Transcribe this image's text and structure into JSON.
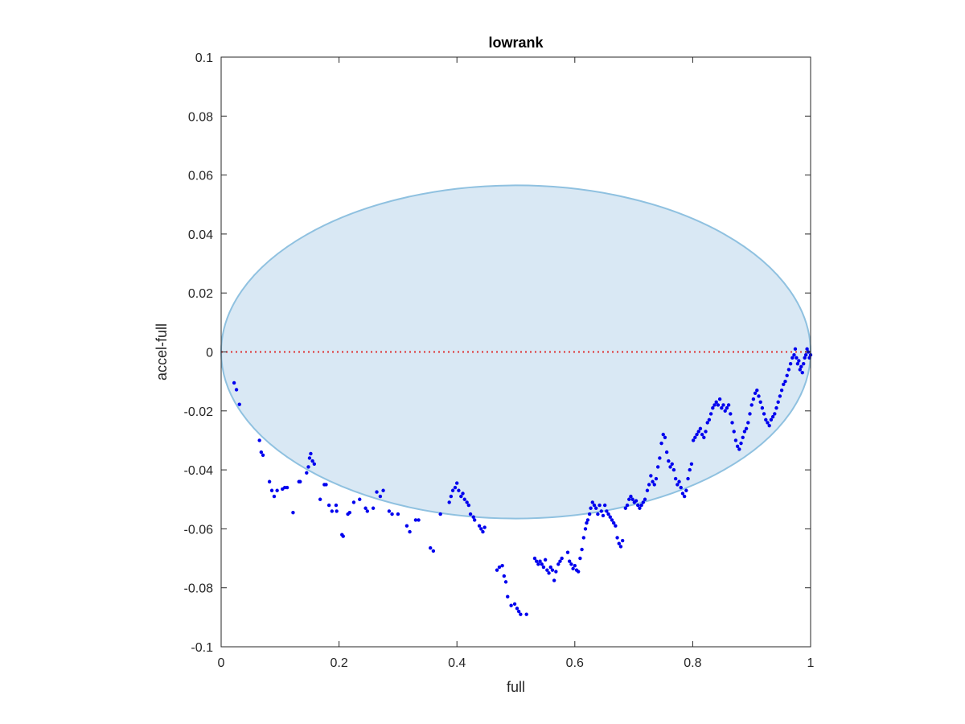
{
  "chart_data": {
    "type": "scatter",
    "title": "lowrank",
    "xlabel": "full",
    "ylabel": "accel-full",
    "xlim": [
      0,
      1
    ],
    "ylim": [
      -0.1,
      0.1
    ],
    "xticks": [
      "0",
      "0.2",
      "0.4",
      "0.6",
      "0.8",
      "1"
    ],
    "xtick_values": [
      0,
      0.2,
      0.4,
      0.6,
      0.8,
      1
    ],
    "yticks": [
      "0.1",
      "0.08",
      "0.06",
      "0.04",
      "0.02",
      "0",
      "-0.02",
      "-0.04",
      "-0.06",
      "-0.08",
      "-0.1"
    ],
    "ytick_values": [
      0.1,
      0.08,
      0.06,
      0.04,
      0.02,
      0,
      -0.02,
      -0.04,
      -0.06,
      -0.08,
      -0.1
    ],
    "grid": false,
    "reference_line": {
      "y": 0,
      "x_range": [
        0,
        1
      ],
      "color": "#e03030",
      "style": "dotted"
    },
    "ellipse": {
      "center": [
        0.5,
        0.0
      ],
      "x_radius": 0.5,
      "y_radius": 0.0565,
      "fill": "#d9e8f4",
      "stroke": "#8fc1e0"
    },
    "series": [
      {
        "color": "#0000ee",
        "points": [
          [
            0.022,
            -0.0105
          ],
          [
            0.026,
            -0.0128
          ],
          [
            0.031,
            -0.0178
          ],
          [
            0.065,
            -0.03
          ],
          [
            0.068,
            -0.034
          ],
          [
            0.071,
            -0.035
          ],
          [
            0.082,
            -0.044
          ],
          [
            0.086,
            -0.047
          ],
          [
            0.09,
            -0.049
          ],
          [
            0.095,
            -0.047
          ],
          [
            0.104,
            -0.0465
          ],
          [
            0.108,
            -0.046
          ],
          [
            0.112,
            -0.046
          ],
          [
            0.122,
            -0.0545
          ],
          [
            0.132,
            -0.044
          ],
          [
            0.134,
            -0.044
          ],
          [
            0.145,
            -0.041
          ],
          [
            0.148,
            -0.039
          ],
          [
            0.15,
            -0.036
          ],
          [
            0.152,
            -0.0345
          ],
          [
            0.155,
            -0.037
          ],
          [
            0.158,
            -0.038
          ],
          [
            0.168,
            -0.05
          ],
          [
            0.175,
            -0.045
          ],
          [
            0.178,
            -0.045
          ],
          [
            0.183,
            -0.052
          ],
          [
            0.188,
            -0.054
          ],
          [
            0.195,
            -0.052
          ],
          [
            0.196,
            -0.054
          ],
          [
            0.205,
            -0.062
          ],
          [
            0.207,
            -0.0625
          ],
          [
            0.215,
            -0.055
          ],
          [
            0.218,
            -0.0545
          ],
          [
            0.225,
            -0.051
          ],
          [
            0.235,
            -0.05
          ],
          [
            0.245,
            -0.053
          ],
          [
            0.248,
            -0.054
          ],
          [
            0.258,
            -0.053
          ],
          [
            0.264,
            -0.0475
          ],
          [
            0.27,
            -0.049
          ],
          [
            0.275,
            -0.047
          ],
          [
            0.285,
            -0.054
          ],
          [
            0.29,
            -0.055
          ],
          [
            0.3,
            -0.055
          ],
          [
            0.315,
            -0.059
          ],
          [
            0.32,
            -0.061
          ],
          [
            0.33,
            -0.057
          ],
          [
            0.335,
            -0.057
          ],
          [
            0.355,
            -0.0665
          ],
          [
            0.36,
            -0.0675
          ],
          [
            0.372,
            -0.055
          ],
          [
            0.387,
            -0.051
          ],
          [
            0.39,
            -0.049
          ],
          [
            0.393,
            -0.047
          ],
          [
            0.397,
            -0.046
          ],
          [
            0.4,
            -0.0445
          ],
          [
            0.403,
            -0.047
          ],
          [
            0.407,
            -0.049
          ],
          [
            0.41,
            -0.048
          ],
          [
            0.413,
            -0.05
          ],
          [
            0.417,
            -0.051
          ],
          [
            0.42,
            -0.052
          ],
          [
            0.423,
            -0.055
          ],
          [
            0.428,
            -0.056
          ],
          [
            0.43,
            -0.057
          ],
          [
            0.438,
            -0.059
          ],
          [
            0.441,
            -0.06
          ],
          [
            0.444,
            -0.061
          ],
          [
            0.447,
            -0.0595
          ],
          [
            0.468,
            -0.074
          ],
          [
            0.472,
            -0.073
          ],
          [
            0.477,
            -0.0725
          ],
          [
            0.48,
            -0.076
          ],
          [
            0.483,
            -0.078
          ],
          [
            0.486,
            -0.083
          ],
          [
            0.492,
            -0.086
          ],
          [
            0.498,
            -0.0855
          ],
          [
            0.502,
            -0.087
          ],
          [
            0.505,
            -0.088
          ],
          [
            0.508,
            -0.089
          ],
          [
            0.518,
            -0.089
          ],
          [
            0.532,
            -0.07
          ],
          [
            0.535,
            -0.071
          ],
          [
            0.538,
            -0.072
          ],
          [
            0.541,
            -0.071
          ],
          [
            0.544,
            -0.072
          ],
          [
            0.547,
            -0.073
          ],
          [
            0.55,
            -0.0705
          ],
          [
            0.553,
            -0.074
          ],
          [
            0.556,
            -0.075
          ],
          [
            0.559,
            -0.073
          ],
          [
            0.562,
            -0.074
          ],
          [
            0.565,
            -0.0775
          ],
          [
            0.568,
            -0.0745
          ],
          [
            0.572,
            -0.072
          ],
          [
            0.575,
            -0.071
          ],
          [
            0.578,
            -0.07
          ],
          [
            0.588,
            -0.068
          ],
          [
            0.591,
            -0.071
          ],
          [
            0.594,
            -0.072
          ],
          [
            0.597,
            -0.0735
          ],
          [
            0.6,
            -0.0725
          ],
          [
            0.603,
            -0.074
          ],
          [
            0.606,
            -0.0745
          ],
          [
            0.609,
            -0.07
          ],
          [
            0.612,
            -0.067
          ],
          [
            0.615,
            -0.063
          ],
          [
            0.618,
            -0.06
          ],
          [
            0.62,
            -0.058
          ],
          [
            0.622,
            -0.057
          ],
          [
            0.625,
            -0.055
          ],
          [
            0.627,
            -0.053
          ],
          [
            0.63,
            -0.051
          ],
          [
            0.633,
            -0.052
          ],
          [
            0.636,
            -0.053
          ],
          [
            0.639,
            -0.055
          ],
          [
            0.642,
            -0.052
          ],
          [
            0.645,
            -0.054
          ],
          [
            0.648,
            -0.0555
          ],
          [
            0.651,
            -0.052
          ],
          [
            0.654,
            -0.054
          ],
          [
            0.657,
            -0.055
          ],
          [
            0.66,
            -0.056
          ],
          [
            0.663,
            -0.057
          ],
          [
            0.666,
            -0.058
          ],
          [
            0.669,
            -0.059
          ],
          [
            0.672,
            -0.063
          ],
          [
            0.675,
            -0.065
          ],
          [
            0.678,
            -0.066
          ],
          [
            0.681,
            -0.064
          ],
          [
            0.686,
            -0.053
          ],
          [
            0.689,
            -0.052
          ],
          [
            0.692,
            -0.05
          ],
          [
            0.695,
            -0.049
          ],
          [
            0.698,
            -0.05
          ],
          [
            0.701,
            -0.051
          ],
          [
            0.704,
            -0.0505
          ],
          [
            0.707,
            -0.052
          ],
          [
            0.71,
            -0.053
          ],
          [
            0.713,
            -0.052
          ],
          [
            0.716,
            -0.051
          ],
          [
            0.719,
            -0.05
          ],
          [
            0.723,
            -0.047
          ],
          [
            0.726,
            -0.045
          ],
          [
            0.729,
            -0.042
          ],
          [
            0.732,
            -0.044
          ],
          [
            0.735,
            -0.045
          ],
          [
            0.738,
            -0.043
          ],
          [
            0.741,
            -0.039
          ],
          [
            0.744,
            -0.036
          ],
          [
            0.747,
            -0.031
          ],
          [
            0.75,
            -0.028
          ],
          [
            0.753,
            -0.029
          ],
          [
            0.756,
            -0.034
          ],
          [
            0.759,
            -0.037
          ],
          [
            0.762,
            -0.039
          ],
          [
            0.765,
            -0.038
          ],
          [
            0.768,
            -0.04
          ],
          [
            0.771,
            -0.043
          ],
          [
            0.774,
            -0.045
          ],
          [
            0.777,
            -0.044
          ],
          [
            0.78,
            -0.046
          ],
          [
            0.783,
            -0.048
          ],
          [
            0.786,
            -0.049
          ],
          [
            0.789,
            -0.047
          ],
          [
            0.792,
            -0.043
          ],
          [
            0.795,
            -0.04
          ],
          [
            0.798,
            -0.038
          ],
          [
            0.801,
            -0.03
          ],
          [
            0.804,
            -0.029
          ],
          [
            0.807,
            -0.028
          ],
          [
            0.81,
            -0.027
          ],
          [
            0.813,
            -0.026
          ],
          [
            0.816,
            -0.028
          ],
          [
            0.819,
            -0.029
          ],
          [
            0.822,
            -0.027
          ],
          [
            0.825,
            -0.024
          ],
          [
            0.828,
            -0.023
          ],
          [
            0.831,
            -0.021
          ],
          [
            0.834,
            -0.019
          ],
          [
            0.837,
            -0.018
          ],
          [
            0.84,
            -0.017
          ],
          [
            0.843,
            -0.018
          ],
          [
            0.846,
            -0.016
          ],
          [
            0.849,
            -0.019
          ],
          [
            0.852,
            -0.018
          ],
          [
            0.855,
            -0.02
          ],
          [
            0.858,
            -0.019
          ],
          [
            0.861,
            -0.018
          ],
          [
            0.864,
            -0.021
          ],
          [
            0.867,
            -0.024
          ],
          [
            0.87,
            -0.027
          ],
          [
            0.873,
            -0.03
          ],
          [
            0.876,
            -0.032
          ],
          [
            0.879,
            -0.033
          ],
          [
            0.882,
            -0.031
          ],
          [
            0.885,
            -0.029
          ],
          [
            0.888,
            -0.027
          ],
          [
            0.891,
            -0.026
          ],
          [
            0.894,
            -0.024
          ],
          [
            0.897,
            -0.021
          ],
          [
            0.9,
            -0.018
          ],
          [
            0.903,
            -0.016
          ],
          [
            0.906,
            -0.014
          ],
          [
            0.909,
            -0.013
          ],
          [
            0.912,
            -0.015
          ],
          [
            0.915,
            -0.017
          ],
          [
            0.918,
            -0.019
          ],
          [
            0.921,
            -0.021
          ],
          [
            0.924,
            -0.023
          ],
          [
            0.927,
            -0.024
          ],
          [
            0.93,
            -0.025
          ],
          [
            0.933,
            -0.023
          ],
          [
            0.936,
            -0.022
          ],
          [
            0.939,
            -0.021
          ],
          [
            0.942,
            -0.019
          ],
          [
            0.945,
            -0.017
          ],
          [
            0.948,
            -0.015
          ],
          [
            0.951,
            -0.013
          ],
          [
            0.954,
            -0.011
          ],
          [
            0.957,
            -0.01
          ],
          [
            0.96,
            -0.008
          ],
          [
            0.963,
            -0.006
          ],
          [
            0.966,
            -0.004
          ],
          [
            0.969,
            -0.002
          ],
          [
            0.972,
            -0.001
          ],
          [
            0.974,
            0.001
          ],
          [
            0.976,
            -0.002
          ],
          [
            0.978,
            -0.004
          ],
          [
            0.98,
            -0.003
          ],
          [
            0.982,
            -0.006
          ],
          [
            0.984,
            -0.005
          ],
          [
            0.986,
            -0.007
          ],
          [
            0.988,
            -0.004
          ],
          [
            0.99,
            -0.002
          ],
          [
            0.992,
            -0.001
          ],
          [
            0.994,
            0.001
          ],
          [
            0.996,
            0.0
          ],
          [
            0.998,
            -0.002
          ],
          [
            1.0,
            -0.001
          ]
        ]
      }
    ]
  }
}
